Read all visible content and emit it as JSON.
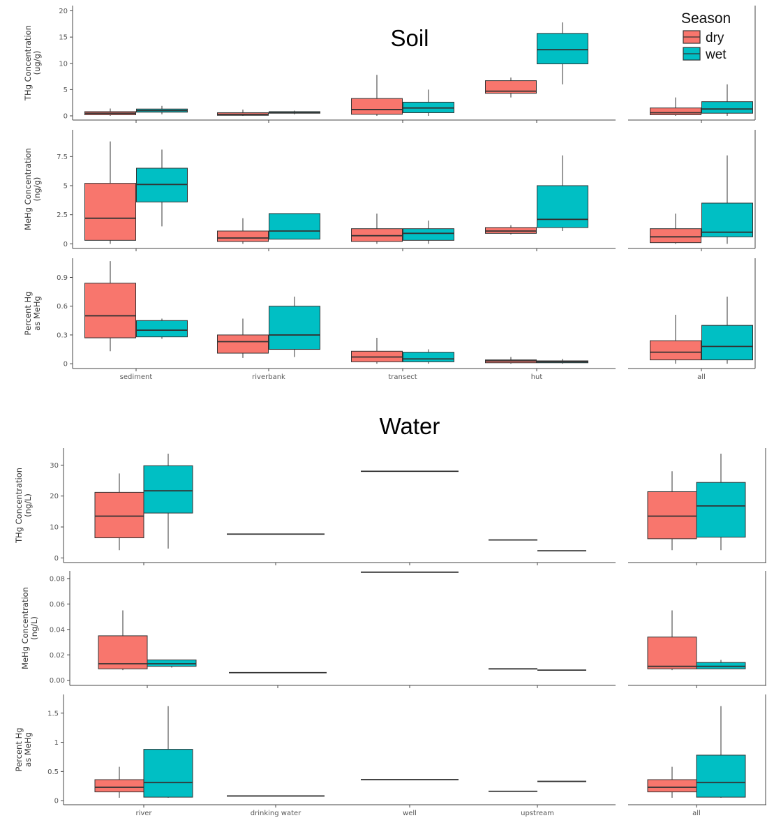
{
  "legend": {
    "title": "Season",
    "entries": [
      {
        "label": "dry",
        "color": "#F8766D"
      },
      {
        "label": "wet",
        "color": "#00BFC4"
      }
    ]
  },
  "chart_data": [
    {
      "type": "box",
      "section": "Soil",
      "ylabel": [
        "THg Concentration",
        "(ug/g)"
      ],
      "yticks": [
        0,
        5,
        10,
        15,
        20
      ],
      "ylim": [
        -0.8,
        21
      ],
      "categories": [
        "sediment",
        "riverbank",
        "transect",
        "hut",
        "all"
      ],
      "show_xticklabels": false,
      "series": [
        {
          "name": "dry",
          "boxes": [
            [
              0.0,
              0.2,
              0.5,
              0.8,
              1.4
            ],
            [
              0.0,
              0.1,
              0.3,
              0.6,
              1.2
            ],
            [
              0.0,
              0.3,
              1.2,
              3.3,
              7.8
            ],
            [
              3.5,
              4.3,
              4.7,
              6.7,
              7.3
            ],
            [
              0.0,
              0.2,
              0.6,
              1.5,
              3.5
            ]
          ]
        },
        {
          "name": "wet",
          "boxes": [
            [
              0.3,
              0.7,
              1.0,
              1.3,
              1.9
            ],
            [
              0.3,
              0.5,
              0.6,
              0.8,
              1.0
            ],
            [
              0.0,
              0.6,
              1.5,
              2.6,
              5.0
            ],
            [
              6.0,
              9.9,
              12.6,
              15.7,
              17.8
            ],
            [
              0.0,
              0.5,
              1.3,
              2.7,
              6.0
            ]
          ]
        }
      ]
    },
    {
      "type": "box",
      "section": "Soil",
      "ylabel": [
        "MeHg Concentration",
        "(ng/g)"
      ],
      "yticks": [
        0.0,
        2.5,
        5.0,
        7.5
      ],
      "ylim": [
        -0.4,
        9.8
      ],
      "categories": [
        "sediment",
        "riverbank",
        "transect",
        "hut",
        "all"
      ],
      "show_xticklabels": false,
      "series": [
        {
          "name": "dry",
          "boxes": [
            [
              0.0,
              0.3,
              2.2,
              5.2,
              8.8
            ],
            [
              0.0,
              0.2,
              0.5,
              1.1,
              2.2
            ],
            [
              0.0,
              0.2,
              0.7,
              1.3,
              2.6
            ],
            [
              0.8,
              0.9,
              1.1,
              1.4,
              1.6
            ],
            [
              0.0,
              0.1,
              0.6,
              1.3,
              2.6
            ]
          ]
        },
        {
          "name": "wet",
          "boxes": [
            [
              1.5,
              3.6,
              5.1,
              6.5,
              8.1
            ],
            [
              0.4,
              0.4,
              1.1,
              2.6,
              2.6
            ],
            [
              0.0,
              0.3,
              0.9,
              1.3,
              2.0
            ],
            [
              1.1,
              1.4,
              2.1,
              5.0,
              7.6
            ],
            [
              0.0,
              0.6,
              1.0,
              3.5,
              7.6
            ]
          ]
        }
      ]
    },
    {
      "type": "box",
      "section": "Soil",
      "ylabel": [
        "Percent Hg",
        "as MeHg"
      ],
      "yticks": [
        0.0,
        0.3,
        0.6,
        0.9
      ],
      "ylim": [
        -0.05,
        1.1
      ],
      "categories": [
        "sediment",
        "riverbank",
        "transect",
        "hut",
        "all"
      ],
      "show_xticklabels": true,
      "series": [
        {
          "name": "dry",
          "boxes": [
            [
              0.13,
              0.27,
              0.5,
              0.84,
              1.07
            ],
            [
              0.06,
              0.11,
              0.23,
              0.3,
              0.47
            ],
            [
              0.0,
              0.02,
              0.07,
              0.13,
              0.27
            ],
            [
              0.0,
              0.01,
              0.03,
              0.04,
              0.07
            ],
            [
              0.0,
              0.04,
              0.12,
              0.24,
              0.51
            ]
          ]
        },
        {
          "name": "wet",
          "boxes": [
            [
              0.26,
              0.28,
              0.35,
              0.45,
              0.47
            ],
            [
              0.07,
              0.15,
              0.3,
              0.6,
              0.7
            ],
            [
              0.0,
              0.02,
              0.05,
              0.12,
              0.15
            ],
            [
              0.0,
              0.01,
              0.02,
              0.03,
              0.05
            ],
            [
              0.0,
              0.04,
              0.18,
              0.4,
              0.7
            ]
          ]
        }
      ]
    },
    {
      "type": "box",
      "section": "Water",
      "ylabel": [
        "THg Concentration",
        "(ng/L)"
      ],
      "yticks": [
        0,
        10,
        20,
        30
      ],
      "ylim": [
        -1.5,
        35.5
      ],
      "categories": [
        "river",
        "drinking water",
        "well",
        "upstream",
        "all"
      ],
      "show_xticklabels": false,
      "series": [
        {
          "name": "dry",
          "boxes": [
            [
              2.5,
              6.5,
              13.5,
              21.2,
              27.3
            ],
            [
              7.7,
              7.7,
              7.7,
              7.7,
              7.7
            ],
            [
              28.0,
              28.0,
              28.0,
              28.0,
              28.0
            ],
            [
              5.8,
              5.8,
              5.8,
              5.8,
              5.8
            ],
            [
              2.5,
              6.2,
              13.5,
              21.4,
              28.0
            ]
          ]
        },
        {
          "name": "wet",
          "boxes": [
            [
              3.0,
              14.5,
              21.7,
              29.8,
              33.7
            ],
            [
              null,
              null,
              null,
              null,
              null
            ],
            [
              null,
              null,
              null,
              null,
              null
            ],
            [
              2.3,
              2.3,
              2.3,
              2.3,
              2.3
            ],
            [
              2.5,
              6.7,
              16.8,
              24.4,
              33.7
            ]
          ]
        }
      ]
    },
    {
      "type": "box",
      "section": "Water",
      "ylabel": [
        "MeHg Concentration",
        "(ng/L)"
      ],
      "yticks": [
        0.0,
        0.02,
        0.04,
        0.06,
        0.08
      ],
      "ytick_labels": [
        "0.00",
        "0.02",
        "0.04",
        "0.06",
        "0.08"
      ],
      "ylim": [
        -0.004,
        0.086
      ],
      "categories": [
        "river",
        "drinking water",
        "well",
        "upstream",
        "all"
      ],
      "show_xticklabels": false,
      "series": [
        {
          "name": "dry",
          "boxes": [
            [
              0.008,
              0.009,
              0.013,
              0.035,
              0.055
            ],
            [
              0.006,
              0.006,
              0.006,
              0.006,
              0.006
            ],
            [
              0.085,
              0.085,
              0.085,
              0.085,
              0.085
            ],
            [
              0.009,
              0.009,
              0.009,
              0.009,
              0.009
            ],
            [
              0.008,
              0.009,
              0.011,
              0.034,
              0.055
            ]
          ]
        },
        {
          "name": "wet",
          "boxes": [
            [
              0.01,
              0.011,
              0.013,
              0.016,
              0.016
            ],
            [
              null,
              null,
              null,
              null,
              null
            ],
            [
              null,
              null,
              null,
              null,
              null
            ],
            [
              0.008,
              0.008,
              0.008,
              0.008,
              0.008
            ],
            [
              0.009,
              0.009,
              0.011,
              0.014,
              0.016
            ]
          ]
        }
      ]
    },
    {
      "type": "box",
      "section": "Water",
      "ylabel": [
        "Percent Hg",
        "as MeHg"
      ],
      "yticks": [
        0.0,
        0.5,
        1.0,
        1.5
      ],
      "ylim": [
        -0.07,
        1.82
      ],
      "categories": [
        "river",
        "drinking water",
        "well",
        "upstream",
        "all"
      ],
      "show_xticklabels": true,
      "series": [
        {
          "name": "dry",
          "boxes": [
            [
              0.05,
              0.15,
              0.23,
              0.36,
              0.58
            ],
            [
              0.08,
              0.08,
              0.08,
              0.08,
              0.08
            ],
            [
              0.36,
              0.36,
              0.36,
              0.36,
              0.36
            ],
            [
              0.16,
              0.16,
              0.16,
              0.16,
              0.16
            ],
            [
              0.05,
              0.15,
              0.23,
              0.36,
              0.58
            ]
          ]
        },
        {
          "name": "wet",
          "boxes": [
            [
              0.05,
              0.06,
              0.31,
              0.88,
              1.62
            ],
            [
              null,
              null,
              null,
              null,
              null
            ],
            [
              null,
              null,
              null,
              null,
              null
            ],
            [
              0.33,
              0.33,
              0.33,
              0.33,
              0.33
            ],
            [
              0.05,
              0.06,
              0.31,
              0.78,
              1.62
            ]
          ]
        }
      ]
    }
  ]
}
